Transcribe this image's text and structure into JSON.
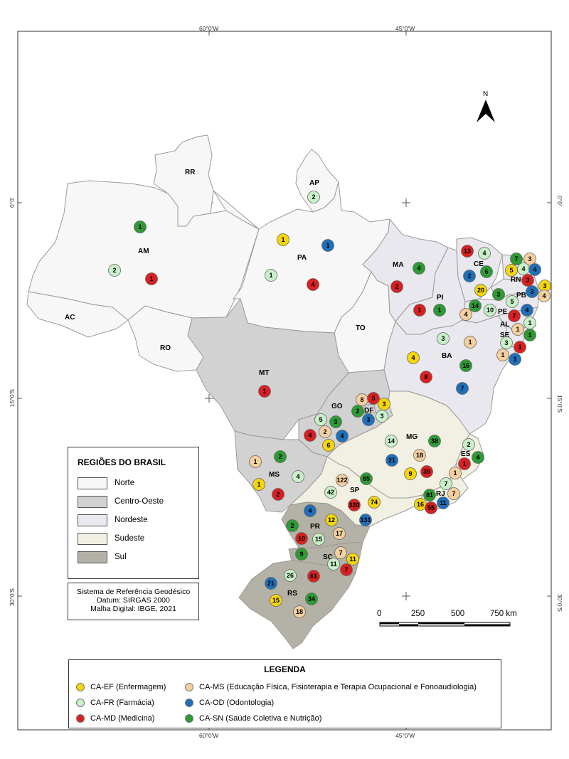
{
  "coords": {
    "top": [
      "60°0'W",
      "45°0'W"
    ],
    "bottom": [
      "60°0'W",
      "45°0'W"
    ],
    "left": [
      "0°0'",
      "15°0'S",
      "30°0'S"
    ],
    "right": [
      "0°0'",
      "15°0'S",
      "30°0'S"
    ]
  },
  "north_label": "N",
  "state_labels": {
    "RR": "RR",
    "AP": "AP",
    "AM": "AM",
    "PA": "PA",
    "AC": "AC",
    "RO": "RO",
    "MT": "MT",
    "TO": "TO",
    "MA": "MA",
    "PI": "PI",
    "CE": "CE",
    "RN": "RN",
    "PB": "PB",
    "PE": "PE",
    "AL": "AL",
    "SE": "SE",
    "BA": "BA",
    "GO": "GO",
    "DF": "DF",
    "MG": "MG",
    "ES": "ES",
    "RJ": "RJ",
    "SP": "SP",
    "MS": "MS",
    "PR": "PR",
    "SC": "SC",
    "RS": "RS"
  },
  "regions_legend": {
    "title": "REGIÕES DO BRASIL",
    "items": [
      {
        "label": "Norte",
        "color": "#f7f7f7"
      },
      {
        "label": "Centro-Oeste",
        "color": "#d2d2d2"
      },
      {
        "label": "Nordeste",
        "color": "#e8e8ee"
      },
      {
        "label": "Sudeste",
        "color": "#f2f0e2"
      },
      {
        "label": "Sul",
        "color": "#b4b2a6"
      }
    ]
  },
  "reference": {
    "line1": "Sistema de Referência Geodésico",
    "line2": "Datum: SIRGAS 2000",
    "line3": "Malha Digital: IBGE, 2021"
  },
  "scale": {
    "ticks": [
      "0",
      "250",
      "500",
      "750 km"
    ]
  },
  "legend": {
    "title": "LEGENDA",
    "items": [
      {
        "code": "EF",
        "label": "CA-EF (Enfermagem)",
        "color": "#f5d60a"
      },
      {
        "code": "FR",
        "label": "CA-FR (Farmácia)",
        "color": "#c9f0c9"
      },
      {
        "code": "MD",
        "label": "CA-MD (Medicina)",
        "color": "#d92020"
      },
      {
        "code": "MS",
        "label": "CA-MS (Educação Física, Fisioterapia e Terapia Ocupacional e Fonoaudiologia)",
        "color": "#f4cfa0"
      },
      {
        "code": "OD",
        "label": "CA-OD (Odontologia)",
        "color": "#1f6fb8"
      },
      {
        "code": "SN",
        "label": "CA-SN (Saúde Coletiva e Nutrição)",
        "color": "#2e9a34"
      }
    ]
  },
  "markers": [
    {
      "state": "AP",
      "type": "FR",
      "value": "2"
    },
    {
      "state": "AM",
      "type": "SN",
      "value": "1"
    },
    {
      "state": "AM",
      "type": "FR",
      "value": "2"
    },
    {
      "state": "AM",
      "type": "MD",
      "value": "1"
    },
    {
      "state": "PA",
      "type": "EF",
      "value": "1"
    },
    {
      "state": "PA",
      "type": "OD",
      "value": "1"
    },
    {
      "state": "PA",
      "type": "FR",
      "value": "1"
    },
    {
      "state": "PA",
      "type": "MD",
      "value": "4"
    },
    {
      "state": "MA",
      "type": "SN",
      "value": "4"
    },
    {
      "state": "MA",
      "type": "MD",
      "value": "2"
    },
    {
      "state": "PI",
      "type": "MD",
      "value": "1"
    },
    {
      "state": "PI",
      "type": "SN",
      "value": "1"
    },
    {
      "state": "CE",
      "type": "MD",
      "value": "13"
    },
    {
      "state": "CE",
      "type": "FR",
      "value": "4"
    },
    {
      "state": "CE",
      "type": "OD",
      "value": "2"
    },
    {
      "state": "CE",
      "type": "SN",
      "value": "6"
    },
    {
      "state": "CE",
      "type": "EF",
      "value": "20"
    },
    {
      "state": "RN",
      "type": "SN",
      "value": "7"
    },
    {
      "state": "RN",
      "type": "MS",
      "value": "3"
    },
    {
      "state": "RN",
      "type": "EF",
      "value": "5"
    },
    {
      "state": "RN",
      "type": "FR",
      "value": "4"
    },
    {
      "state": "RN",
      "type": "OD",
      "value": "4"
    },
    {
      "state": "RN",
      "type": "MD",
      "value": "3"
    },
    {
      "state": "PB",
      "type": "EF",
      "value": "3"
    },
    {
      "state": "PB",
      "type": "SN",
      "value": "3"
    },
    {
      "state": "PB",
      "type": "FR",
      "value": "5"
    },
    {
      "state": "PB",
      "type": "OD",
      "value": "3"
    },
    {
      "state": "PB",
      "type": "MS",
      "value": "4"
    },
    {
      "state": "PE",
      "type": "SN",
      "value": "14"
    },
    {
      "state": "PE",
      "type": "FR",
      "value": "10"
    },
    {
      "state": "PE",
      "type": "MS",
      "value": "4"
    },
    {
      "state": "PE",
      "type": "MD",
      "value": "7"
    },
    {
      "state": "PE",
      "type": "OD",
      "value": "4"
    },
    {
      "state": "AL",
      "type": "MS",
      "value": "1"
    },
    {
      "state": "AL",
      "type": "FR",
      "value": "1"
    },
    {
      "state": "AL",
      "type": "SN",
      "value": "1"
    },
    {
      "state": "SE",
      "type": "FR",
      "value": "3"
    },
    {
      "state": "SE",
      "type": "MS",
      "value": "1"
    },
    {
      "state": "SE",
      "type": "MD",
      "value": "1"
    },
    {
      "state": "SE",
      "type": "OD",
      "value": "1"
    },
    {
      "state": "BA",
      "type": "FR",
      "value": "3"
    },
    {
      "state": "BA",
      "type": "MS",
      "value": "1"
    },
    {
      "state": "BA",
      "type": "EF",
      "value": "4"
    },
    {
      "state": "BA",
      "type": "SN",
      "value": "16"
    },
    {
      "state": "BA",
      "type": "MD",
      "value": "8"
    },
    {
      "state": "BA",
      "type": "OD",
      "value": "7"
    },
    {
      "state": "MT",
      "type": "MD",
      "value": "1"
    },
    {
      "state": "GO",
      "type": "MS",
      "value": "8"
    },
    {
      "state": "GO",
      "type": "MD",
      "value": "5"
    },
    {
      "state": "GO",
      "type": "EF",
      "value": "3"
    },
    {
      "state": "GO",
      "type": "SN",
      "value": "2"
    },
    {
      "state": "GO",
      "type": "OD",
      "value": "3"
    },
    {
      "state": "GO",
      "type": "FR",
      "value": "3"
    },
    {
      "state": "GO",
      "type": "FR",
      "value": "5"
    },
    {
      "state": "GO",
      "type": "SN",
      "value": "3"
    },
    {
      "state": "GO",
      "type": "MD",
      "value": "4"
    },
    {
      "state": "GO",
      "type": "MS",
      "value": "2"
    },
    {
      "state": "GO",
      "type": "OD",
      "value": "4"
    },
    {
      "state": "GO",
      "type": "EF",
      "value": "6"
    },
    {
      "state": "MG",
      "type": "FR",
      "value": "14"
    },
    {
      "state": "MG",
      "type": "SN",
      "value": "38"
    },
    {
      "state": "MG",
      "type": "MS",
      "value": "18"
    },
    {
      "state": "MG",
      "type": "OD",
      "value": "21"
    },
    {
      "state": "MG",
      "type": "EF",
      "value": "9"
    },
    {
      "state": "MG",
      "type": "MD",
      "value": "39"
    },
    {
      "state": "ES",
      "type": "FR",
      "value": "2"
    },
    {
      "state": "ES",
      "type": "SN",
      "value": "4"
    },
    {
      "state": "ES",
      "type": "MD",
      "value": "1"
    },
    {
      "state": "ES",
      "type": "MS",
      "value": "1"
    },
    {
      "state": "RJ",
      "type": "FR",
      "value": "7"
    },
    {
      "state": "RJ",
      "type": "SN",
      "value": "81"
    },
    {
      "state": "RJ",
      "type": "MS",
      "value": "7"
    },
    {
      "state": "RJ",
      "type": "EF",
      "value": "16"
    },
    {
      "state": "RJ",
      "type": "MD",
      "value": "55"
    },
    {
      "state": "RJ",
      "type": "OD",
      "value": "11"
    },
    {
      "state": "SP",
      "type": "MS",
      "value": "122"
    },
    {
      "state": "SP",
      "type": "SN",
      "value": "85"
    },
    {
      "state": "SP",
      "type": "FR",
      "value": "42"
    },
    {
      "state": "SP",
      "type": "EF",
      "value": "74"
    },
    {
      "state": "SP",
      "type": "MD",
      "value": "320"
    },
    {
      "state": "SP",
      "type": "OD",
      "value": "131"
    },
    {
      "state": "MS",
      "type": "MS",
      "value": "1"
    },
    {
      "state": "MS",
      "type": "SN",
      "value": "2"
    },
    {
      "state": "MS",
      "type": "FR",
      "value": "4"
    },
    {
      "state": "MS",
      "type": "EF",
      "value": "1"
    },
    {
      "state": "MS",
      "type": "MD",
      "value": "2"
    },
    {
      "state": "PR",
      "type": "OD",
      "value": "4"
    },
    {
      "state": "PR",
      "type": "SN",
      "value": "2"
    },
    {
      "state": "PR",
      "type": "EF",
      "value": "12"
    },
    {
      "state": "PR",
      "type": "MS",
      "value": "17"
    },
    {
      "state": "PR",
      "type": "MD",
      "value": "10"
    },
    {
      "state": "PR",
      "type": "FR",
      "value": "15"
    },
    {
      "state": "SC",
      "type": "SN",
      "value": "9"
    },
    {
      "state": "SC",
      "type": "MS",
      "value": "7"
    },
    {
      "state": "SC",
      "type": "EF",
      "value": "11"
    },
    {
      "state": "SC",
      "type": "FR",
      "value": "11"
    },
    {
      "state": "SC",
      "type": "MD",
      "value": "7"
    },
    {
      "state": "RS",
      "type": "FR",
      "value": "26"
    },
    {
      "state": "RS",
      "type": "MD",
      "value": "61"
    },
    {
      "state": "RS",
      "type": "OD",
      "value": "21"
    },
    {
      "state": "RS",
      "type": "SN",
      "value": "34"
    },
    {
      "state": "RS",
      "type": "EF",
      "value": "15"
    },
    {
      "state": "RS",
      "type": "MS",
      "value": "18"
    }
  ]
}
